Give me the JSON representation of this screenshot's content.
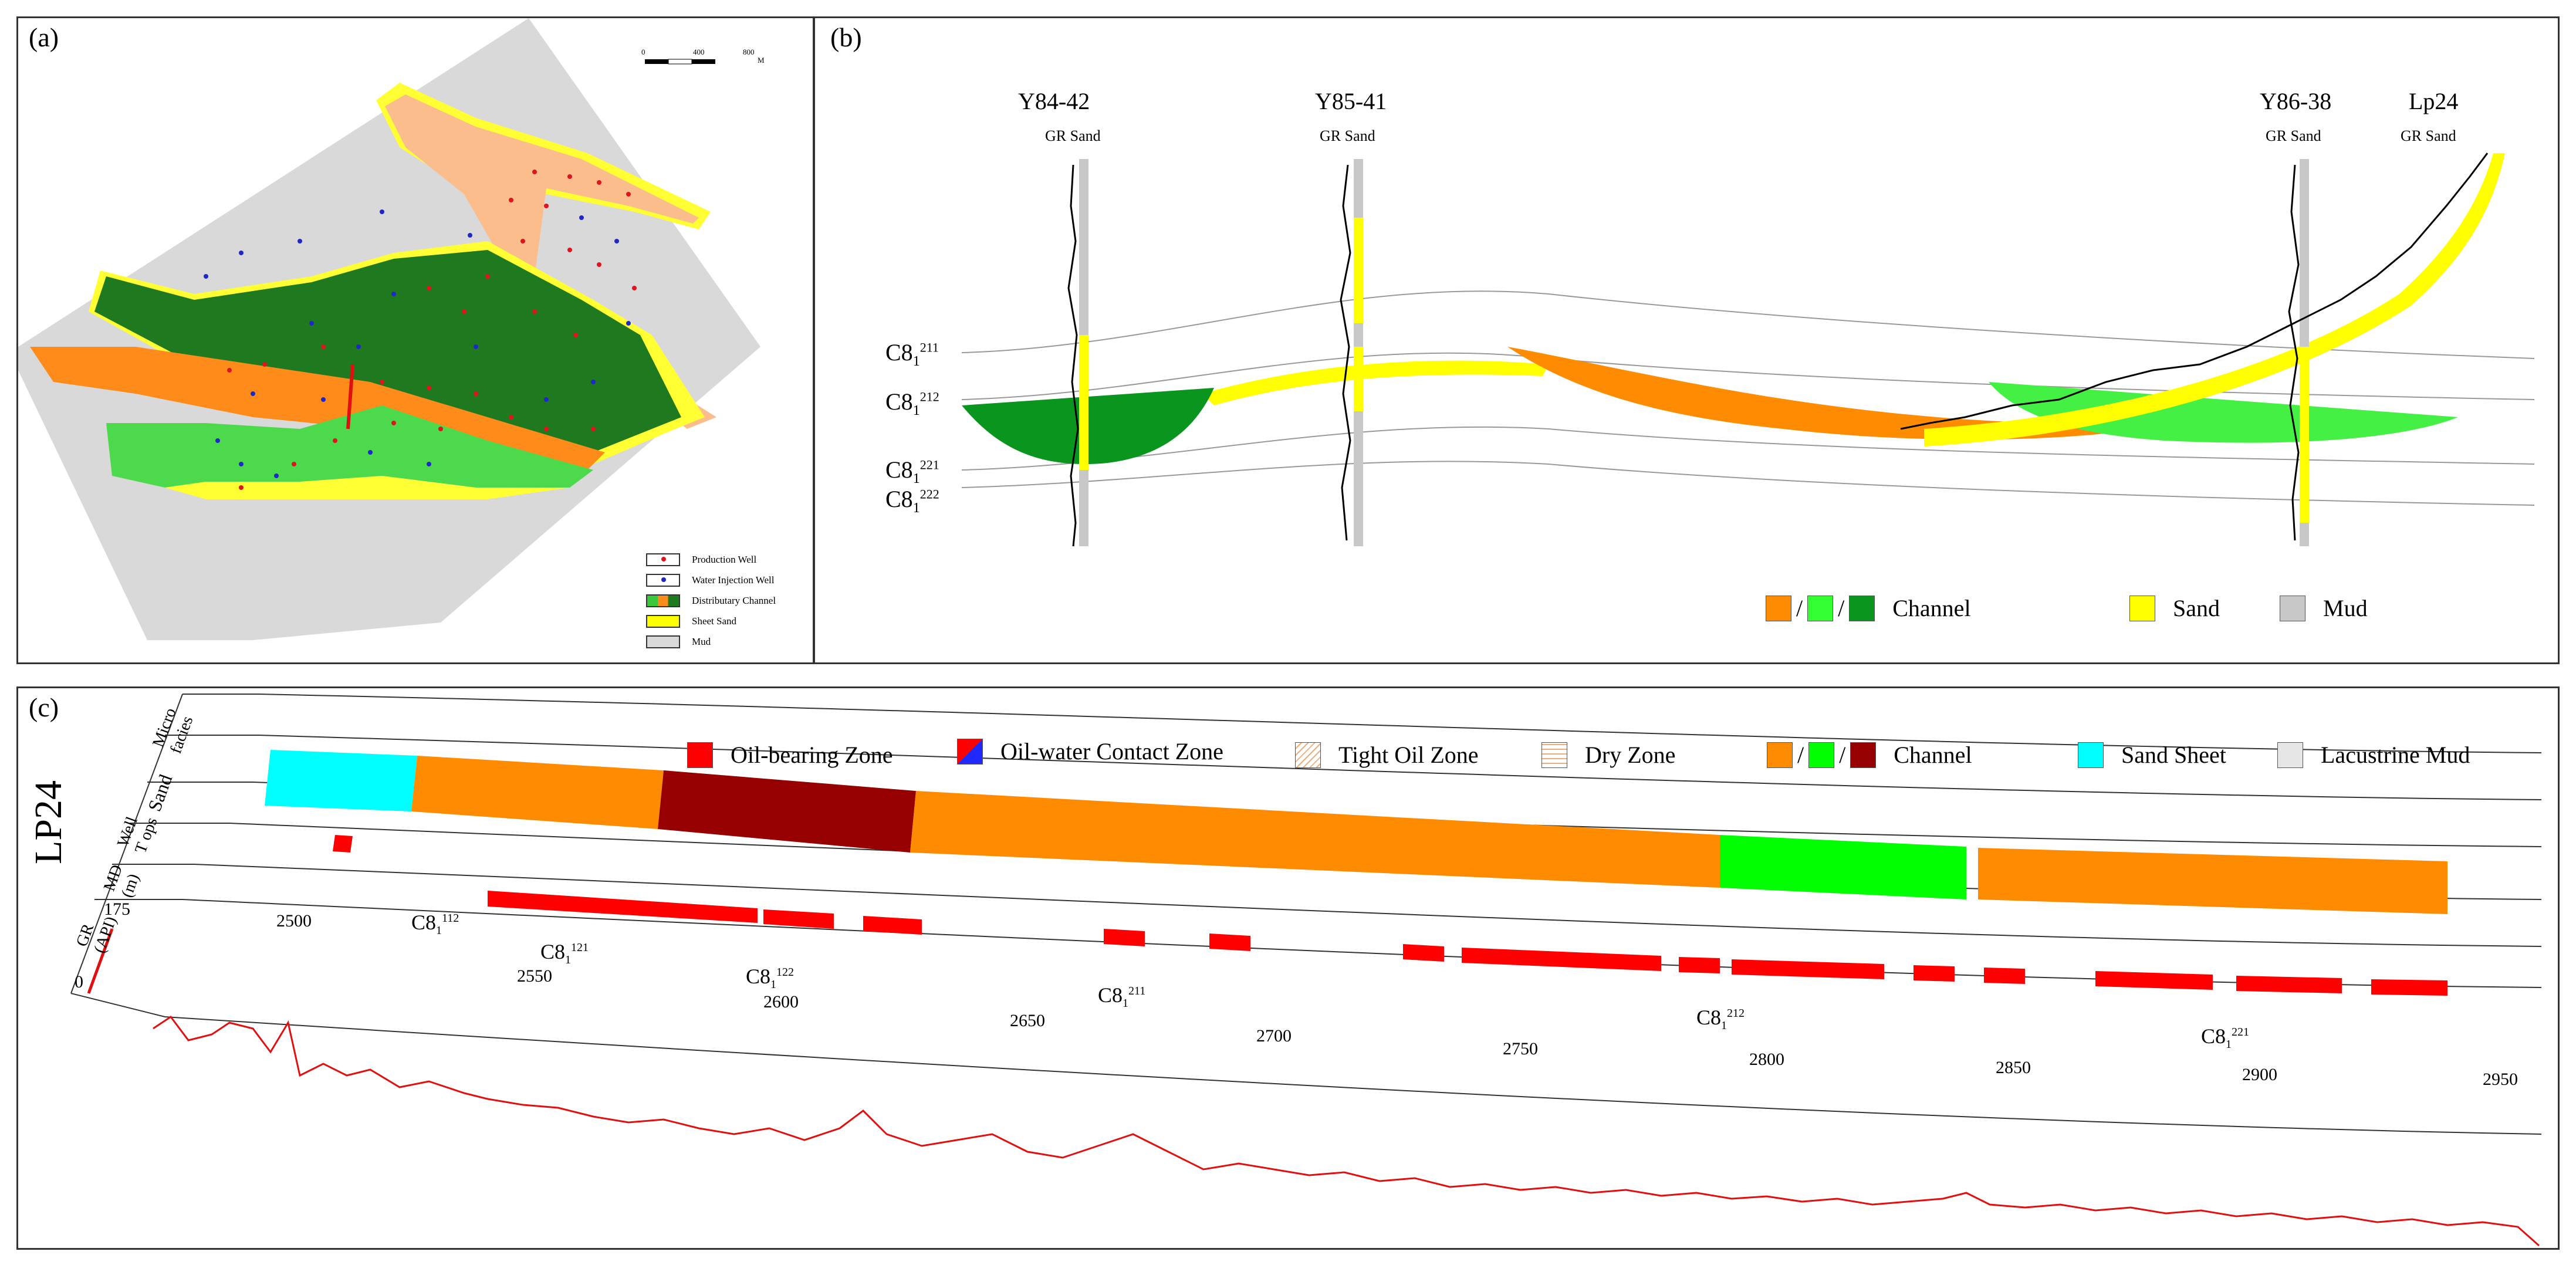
{
  "panels": {
    "a": "(a)",
    "b": "(b)",
    "c": "(c)"
  },
  "map": {
    "scale_ticks": [
      "0",
      "400",
      "800"
    ],
    "scale_unit": "M",
    "legend": [
      {
        "label": "Production Well",
        "color": "#e0141e"
      },
      {
        "label": "Water Injection Well",
        "color": "#1e28c8"
      },
      {
        "label": "Distributary Channel",
        "color": "#3cc83c"
      },
      {
        "label": "Sheet Sand",
        "color": "#ffff00"
      },
      {
        "label": "Mud",
        "color": "#d9d9d9"
      }
    ]
  },
  "section": {
    "wells": [
      "Y84-42",
      "Y85-41",
      "Y86-38",
      "Lp24"
    ],
    "track_label": "GR Sand",
    "horizons": [
      {
        "base": "C8",
        "sub": "1",
        "sup": "211"
      },
      {
        "base": "C8",
        "sub": "1",
        "sup": "212"
      },
      {
        "base": "C8",
        "sub": "1",
        "sup": "221"
      },
      {
        "base": "C8",
        "sub": "1",
        "sup": "222"
      }
    ],
    "legend": {
      "channel": "Channel",
      "sand": "Sand",
      "mud": "Mud",
      "channel_colors": [
        "#ff8c00",
        "#33ff33",
        "#0a961e"
      ],
      "sand_color": "#ffff00",
      "mud_color": "#c8c8c8"
    }
  },
  "log": {
    "well": "LP24",
    "tracks": {
      "micro": "Micro facies",
      "sand": "Sand",
      "tops": "Well T ops",
      "md": "MD (m)",
      "gr": "GR (API)"
    },
    "gr_scale": [
      "0",
      "175"
    ],
    "legend": [
      {
        "label": "Oil-bearing Zone",
        "color": "#ff0000"
      },
      {
        "label": "Oil-water Contact Zone",
        "color": "#1e28ff"
      },
      {
        "label": "Tight Oil Zone",
        "color": "#f6d6b0"
      },
      {
        "label": "Dry Zone",
        "color": "#fbe6c8"
      },
      {
        "label": "Channel",
        "colors": [
          "#ff8c00",
          "#00ff00",
          "#960000"
        ]
      },
      {
        "label": "Sand Sheet",
        "color": "#00ffff"
      },
      {
        "label": "Lacustrine Mud",
        "color": "#e6e6e6"
      }
    ],
    "tops": [
      {
        "base": "C8",
        "sub": "1",
        "sup": "112"
      },
      {
        "base": "C8",
        "sub": "1",
        "sup": "121"
      },
      {
        "base": "C8",
        "sub": "1",
        "sup": "122"
      },
      {
        "base": "C8",
        "sub": "1",
        "sup": "211"
      },
      {
        "base": "C8",
        "sub": "1",
        "sup": "212"
      },
      {
        "base": "C8",
        "sub": "1",
        "sup": "221"
      }
    ],
    "md_ticks": [
      "2500",
      "2550",
      "2600",
      "2650",
      "2700",
      "2750",
      "2800",
      "2850",
      "2900",
      "2950"
    ]
  }
}
